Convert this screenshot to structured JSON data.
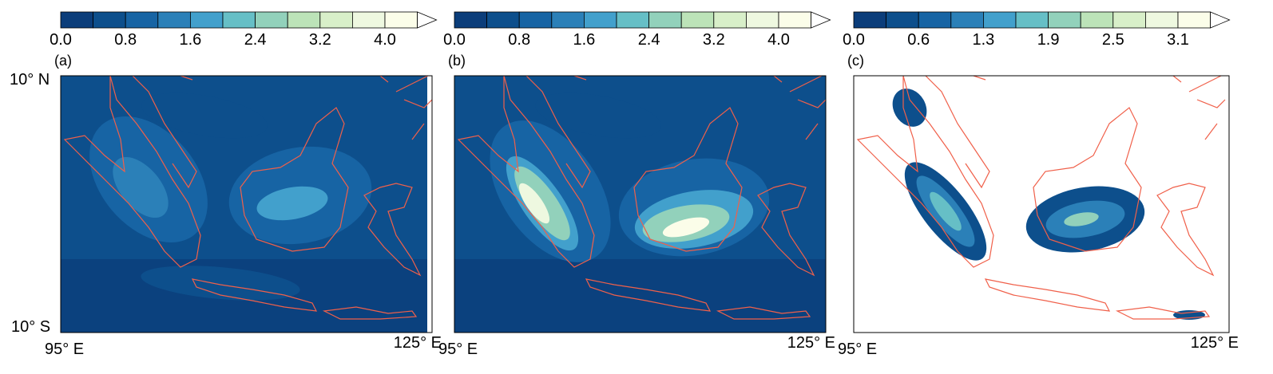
{
  "colormap": [
    "#0b3d7a",
    "#0d4f8c",
    "#1764a4",
    "#2b80b8",
    "#42a0cc",
    "#66bfc6",
    "#92d1bb",
    "#bce3b8",
    "#d8efc9",
    "#eef8e0",
    "#fbfde9",
    "#ffffff"
  ],
  "panels": [
    {
      "label": "(a)",
      "colorbar_ticks": [
        "0.0",
        "0.8",
        "1.6",
        "2.4",
        "3.2",
        "4.0"
      ]
    },
    {
      "label": "(b)",
      "colorbar_ticks": [
        "0.0",
        "0.8",
        "1.6",
        "2.4",
        "3.2",
        "4.0"
      ]
    },
    {
      "label": "(c)",
      "colorbar_ticks": [
        "0.0",
        "0.6",
        "1.3",
        "1.9",
        "2.5",
        "3.1"
      ]
    }
  ],
  "y_axis": {
    "north": "10° N",
    "south": "10° S"
  },
  "x_axis": {
    "west": "95° E",
    "east": "125° E"
  }
}
